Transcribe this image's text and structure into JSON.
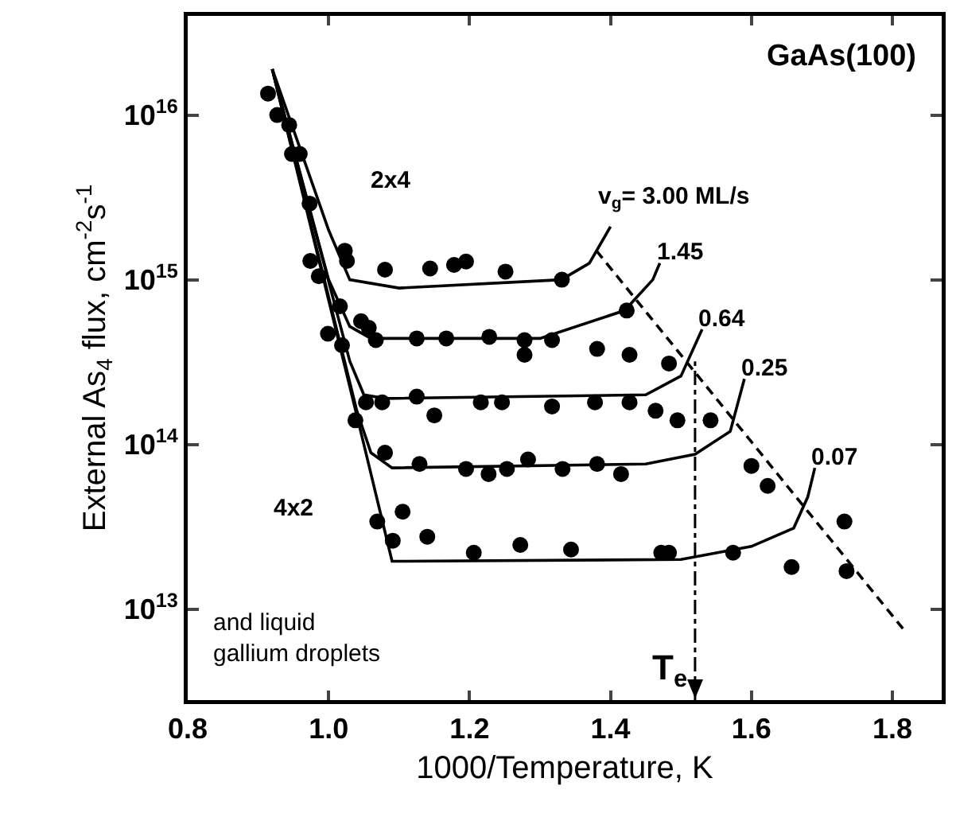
{
  "chart_data": {
    "type": "line",
    "xlabel": "1000/Temperature, K",
    "ylabel": "External As$_{4}$ flux, cm$^{-2}$s$^{-1}$",
    "xlim": [
      0.8,
      1.87
    ],
    "xticks": [
      0.8,
      {
        "value": 1,
        "label": "1.0"
      },
      1.2,
      1.4,
      1.6,
      1.8
    ],
    "ylim": [
      2800000000000.0,
      4e+16
    ],
    "log": true,
    "yticks": [
      {
        "value": 10000000000000.0,
        "label": "10$^{13}$"
      },
      {
        "value": 100000000000000.0,
        "label": "10$^{14}$"
      },
      {
        "value": 1000000000000000.0,
        "label": "10$^{15}$"
      },
      {
        "value": 1e+16,
        "label": "10$^{16}$"
      }
    ],
    "grid": false,
    "series": [
      {
        "color": "#000000",
        "x": [
          0.92,
          1.0,
          1.03,
          1.1,
          1.33,
          1.37,
          1.4
        ],
        "values": [
          1.9e+16,
          2000000000000000.0,
          1000000000000000.0,
          890000000000000.0,
          1000000000000000.0,
          1260000000000000.0,
          2100000000000000.0
        ]
      },
      {
        "type": "line",
        "color": "#000000",
        "x": [
          0.92,
          1.0,
          1.03,
          1.06,
          1.3,
          1.42,
          1.46,
          1.47
        ],
        "values": [
          1.9e+16,
          1000000000000000.0,
          520000000000000.0,
          440000000000000.0,
          440000000000000.0,
          650000000000000.0,
          1000000000000000.0,
          1260000000000000.0
        ]
      },
      {
        "type": "line",
        "color": "#000000",
        "x": [
          0.92,
          1.03,
          1.05,
          1.08,
          1.45,
          1.5,
          1.53
        ],
        "values": [
          1.9e+16,
          320000000000000.0,
          200000000000000.0,
          190000000000000.0,
          200000000000000.0,
          260000000000000.0,
          500000000000000.0
        ]
      },
      {
        "type": "line",
        "color": "#000000",
        "x": [
          0.92,
          1.04,
          1.06,
          1.09,
          1.45,
          1.52,
          1.57,
          1.59
        ],
        "values": [
          1.9e+16,
          160000000000000.0,
          89000000000000.0,
          72000000000000.0,
          76000000000000.0,
          87000000000000.0,
          120000000000000.0,
          250000000000000.0
        ]
      },
      {
        "type": "line",
        "color": "#000000",
        "x": [
          0.92,
          1.05,
          1.09,
          1.5,
          1.6,
          1.66,
          1.68,
          1.69
        ],
        "values": [
          1.9e+16,
          100000000000000.0,
          19500000000000.0,
          20000000000000.0,
          24000000000000.0,
          31000000000000.0,
          48000000000000.0,
          72000000000000.0
        ]
      },
      {
        "type": "line",
        "color": "#000000",
        "line_style": "dashed",
        "x": [
          1.38,
          1.815
        ],
        "values": [
          1500000000000000.0,
          7600000000000.0
        ]
      },
      {
        "type": "scatter",
        "marker": "circle",
        "color": "#000000",
        "x": [
          0.914,
          0.927,
          0.944,
          0.948,
          0.959,
          0.973,
          0.974,
          0.986,
          1.023,
          1.026,
          1.08,
          1.144,
          1.178,
          1.195,
          1.251,
          1.016,
          1.046,
          1.057,
          1.067,
          0.999,
          1.019,
          1.125,
          1.167,
          1.228,
          1.278,
          1.278,
          1.331,
          1.423,
          1.317,
          1.381,
          1.427,
          1.483,
          1.053,
          1.076,
          1.125,
          1.15,
          1.216,
          1.246,
          1.038,
          1.08,
          1.129,
          1.195,
          1.227,
          1.253,
          1.283,
          1.069,
          1.105,
          1.091,
          1.14,
          1.206,
          1.272,
          1.317,
          1.378,
          1.427,
          1.464,
          1.495,
          1.542,
          1.332,
          1.381,
          1.415,
          1.6,
          1.623,
          1.732,
          1.344,
          1.472,
          1.483,
          1.574,
          1.657,
          1.735
        ],
        "values": [
          1.35e+16,
          1e+16,
          8700000000000000.0,
          5800000000000000.0,
          5800000000000000.0,
          2900000000000000.0,
          1300000000000000.0,
          1050000000000000.0,
          1500000000000000.0,
          1300000000000000.0,
          1150000000000000.0,
          1170000000000000.0,
          1230000000000000.0,
          1290000000000000.0,
          1120000000000000.0,
          690000000000000.0,
          560000000000000.0,
          510000000000000.0,
          430000000000000.0,
          470000000000000.0,
          400000000000000.0,
          440000000000000.0,
          440000000000000.0,
          450000000000000.0,
          430000000000000.0,
          350000000000000.0,
          1000000000000000.0,
          650000000000000.0,
          430000000000000.0,
          380000000000000.0,
          350000000000000.0,
          310000000000000.0,
          180000000000000.0,
          180000000000000.0,
          195000000000000.0,
          150000000000000.0,
          180000000000000.0,
          180000000000000.0,
          140000000000000.0,
          89000000000000.0,
          76000000000000.0,
          71000000000000.0,
          66000000000000.0,
          71000000000000.0,
          81000000000000.0,
          34000000000000.0,
          39000000000000.0,
          26000000000000.0,
          27500000000000.0,
          22000000000000.0,
          24500000000000.0,
          170000000000000.0,
          180000000000000.0,
          180000000000000.0,
          160000000000000.0,
          140000000000000.0,
          140000000000000.0,
          71000000000000.0,
          76000000000000.0,
          66000000000000.0,
          74000000000000.0,
          56000000000000.0,
          34000000000000.0,
          23000000000000.0,
          22000000000000.0,
          22000000000000.0,
          22000000000000.0,
          18000000000000.0,
          17000000000000.0
        ]
      }
    ],
    "ref_lines": [
      {
        "axis": "x",
        "value": 1.52,
        "label": "T$_{e}$",
        "line_style": "dotted",
        "color": "#000000"
      }
    ],
    "annotations": [
      "GaAs(100)",
      "2x4",
      "4x2",
      "and liquid\ngallium droplets",
      {
        "text": "v$_{g}$= 3.00 ML/s",
        "x": 1.4,
        "y": 2100000000000000.0
      },
      {
        "text": "1.45",
        "x": 1.47,
        "y": 1260000000000000.0
      },
      {
        "text": "0.64",
        "x": 1.53,
        "y": 500000000000000.0
      },
      {
        "text": "0.25",
        "x": 1.59,
        "y": 250000000000000.0
      },
      {
        "text": "0.07",
        "x": 1.69,
        "y": 72000000000000.0
      }
    ]
  }
}
